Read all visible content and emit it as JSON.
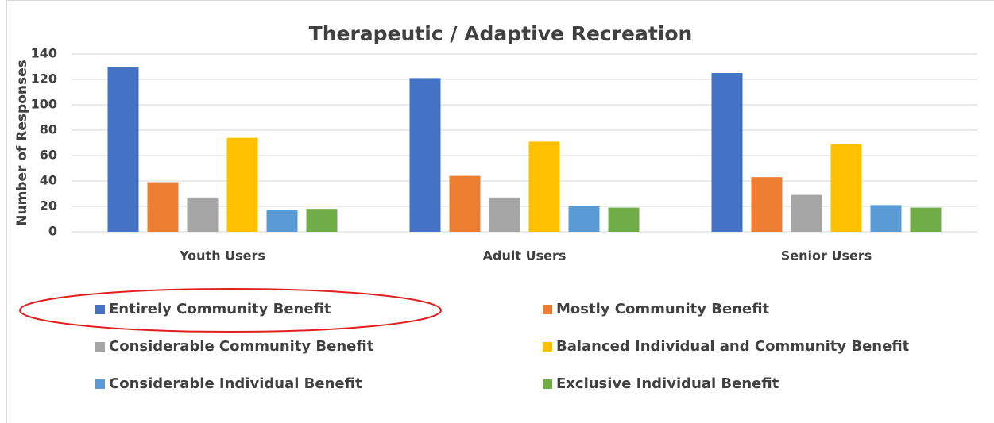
{
  "chart_data": {
    "type": "bar",
    "title": "Therapeutic / Adaptive Recreation",
    "y_label": "Number of Responses",
    "categories": [
      "Youth Users",
      "Adult Users",
      "Senior Users"
    ],
    "series": [
      {
        "name": "Entirely Community Benefit",
        "color": "#4472c4",
        "values": [
          130,
          121,
          125
        ]
      },
      {
        "name": "Mostly Community Benefit",
        "color": "#ed7d31",
        "values": [
          39,
          44,
          43
        ]
      },
      {
        "name": "Considerable Community Benefit",
        "color": "#a5a5a5",
        "values": [
          27,
          27,
          29
        ]
      },
      {
        "name": "Balanced Individual and Community Benefit",
        "color": "#ffc000",
        "values": [
          74,
          71,
          69
        ]
      },
      {
        "name": "Considerable Individual Benefit",
        "color": "#5b9bd5",
        "values": [
          17,
          20,
          21
        ]
      },
      {
        "name": "Exclusive Individual Benefit",
        "color": "#70ad47",
        "values": [
          18,
          19,
          19
        ]
      }
    ],
    "ylim": [
      0,
      140
    ],
    "yticks": [
      0,
      20,
      40,
      60,
      80,
      100,
      120,
      140
    ],
    "grid": true,
    "legend": "bottom"
  }
}
